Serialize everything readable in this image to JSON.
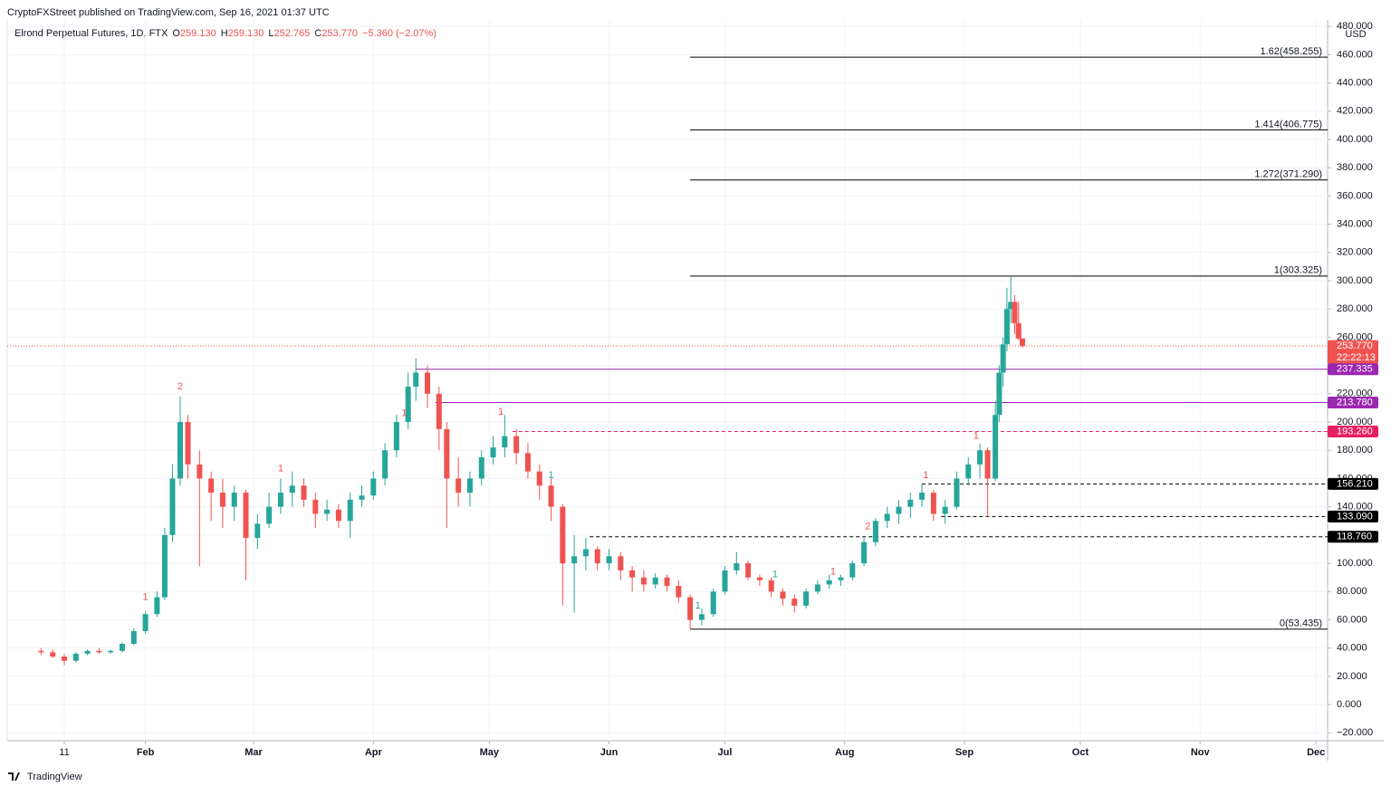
{
  "header": {
    "publisher": "CryptoFXStreet published on TradingView.com, Sep 16, 2021 01:37 UTC",
    "symbol": "Elrond Perpetual Futures, 1D, FTX",
    "o_label": "O",
    "o": "259.130",
    "h_label": "H",
    "h": "259.130",
    "l_label": "L",
    "l": "252.765",
    "c_label": "C",
    "c": "253.770",
    "change": "−5.360 (−2.07%)",
    "currency": "USD",
    "countdown": "22:22:13"
  },
  "footer": {
    "brand": "TradingView"
  },
  "chart_data": {
    "type": "candlestick",
    "up_color": "#26a69a",
    "down_color": "#ef5350",
    "grid": true,
    "x": [
      4,
      7,
      10,
      13,
      16,
      19,
      22,
      25,
      28,
      31,
      34,
      36,
      38,
      40,
      42,
      45,
      48,
      51,
      54,
      57,
      60,
      63,
      66,
      69,
      72,
      75,
      78,
      81,
      84,
      87,
      90,
      93,
      96,
      99,
      101,
      104,
      107,
      109,
      112,
      115,
      118,
      121,
      124,
      127,
      130,
      133,
      136,
      139,
      142,
      145,
      148,
      151,
      154,
      157,
      160,
      163,
      166,
      169,
      172,
      175,
      178,
      181,
      184,
      187,
      190,
      193,
      196,
      199,
      202,
      205,
      208,
      211,
      214,
      217,
      220,
      223,
      226,
      229,
      232,
      235,
      238,
      241,
      244,
      247,
      249,
      251,
      252,
      253,
      254,
      255,
      256,
      257,
      258
    ],
    "open": [
      38,
      37,
      34,
      31,
      36,
      38,
      37,
      38,
      43,
      52,
      64,
      76,
      120,
      160,
      200,
      170,
      160,
      150,
      140,
      150,
      118,
      128,
      140,
      150,
      155,
      145,
      135,
      138,
      130,
      145,
      148,
      160,
      180,
      200,
      225,
      235,
      220,
      195,
      160,
      150,
      160,
      175,
      182,
      190,
      178,
      165,
      155,
      140,
      100,
      105,
      110,
      100,
      105,
      95,
      90,
      85,
      90,
      84,
      76,
      60,
      64,
      80,
      95,
      100,
      90,
      88,
      80,
      75,
      70,
      80,
      85,
      88,
      90,
      100,
      115,
      130,
      135,
      140,
      145,
      150,
      135,
      140,
      160,
      170,
      180,
      160,
      205,
      235,
      255,
      280,
      285,
      270,
      259.13
    ],
    "high": [
      40,
      39,
      36,
      37,
      39,
      40,
      39,
      44,
      54,
      66,
      80,
      125,
      170,
      218,
      205,
      180,
      165,
      160,
      155,
      152,
      135,
      150,
      160,
      165,
      160,
      150,
      145,
      142,
      150,
      155,
      165,
      185,
      205,
      235,
      245,
      240,
      225,
      200,
      175,
      165,
      180,
      190,
      205,
      195,
      185,
      170,
      160,
      142,
      120,
      118,
      112,
      110,
      108,
      98,
      95,
      93,
      92,
      88,
      78,
      68,
      82,
      98,
      108,
      102,
      92,
      90,
      82,
      78,
      82,
      88,
      92,
      92,
      102,
      118,
      132,
      140,
      145,
      150,
      156,
      152,
      145,
      165,
      175,
      185,
      182,
      215,
      240,
      260,
      295,
      303.325,
      290,
      285,
      259.13
    ],
    "low": [
      35,
      33,
      28,
      30,
      35,
      36,
      36,
      37,
      42,
      50,
      62,
      74,
      115,
      155,
      160,
      98,
      130,
      125,
      130,
      88,
      110,
      125,
      135,
      140,
      140,
      125,
      130,
      125,
      118,
      140,
      145,
      155,
      175,
      195,
      215,
      210,
      180,
      125,
      140,
      140,
      155,
      170,
      175,
      170,
      160,
      145,
      130,
      70,
      65,
      95,
      95,
      95,
      88,
      80,
      80,
      82,
      80,
      72,
      53.435,
      56,
      62,
      78,
      92,
      88,
      84,
      76,
      70,
      65,
      68,
      78,
      82,
      84,
      88,
      98,
      112,
      125,
      128,
      132,
      140,
      130,
      128,
      138,
      155,
      160,
      133,
      158,
      200,
      225,
      250,
      270,
      262,
      258,
      252.765
    ],
    "close": [
      37,
      34,
      31,
      36,
      38,
      37,
      38,
      43,
      52,
      64,
      76,
      120,
      160,
      200,
      170,
      160,
      150,
      140,
      150,
      118,
      128,
      140,
      150,
      155,
      145,
      135,
      138,
      130,
      145,
      148,
      160,
      180,
      200,
      225,
      235,
      220,
      195,
      160,
      150,
      160,
      175,
      182,
      190,
      178,
      165,
      155,
      140,
      100,
      105,
      110,
      100,
      105,
      95,
      90,
      85,
      90,
      84,
      76,
      60,
      64,
      80,
      95,
      100,
      90,
      88,
      80,
      75,
      70,
      80,
      85,
      88,
      90,
      100,
      115,
      130,
      135,
      140,
      145,
      150,
      135,
      140,
      160,
      170,
      180,
      160,
      205,
      235,
      255,
      280,
      285,
      270,
      259.13,
      253.77
    ],
    "xlim": [
      -4.77,
      337
    ],
    "xticks": [
      {
        "value": 10,
        "label": "11"
      },
      {
        "value": 31,
        "label": "Feb"
      },
      {
        "value": 59,
        "label": "Mar"
      },
      {
        "value": 90,
        "label": "Apr"
      },
      {
        "value": 120,
        "label": "May"
      },
      {
        "value": 151,
        "label": "Jun"
      },
      {
        "value": 181,
        "label": "Jul"
      },
      {
        "value": 212,
        "label": "Aug"
      },
      {
        "value": 243,
        "label": "Sep"
      },
      {
        "value": 273,
        "label": "Oct"
      },
      {
        "value": 304,
        "label": "Nov"
      },
      {
        "value": 334,
        "label": "Dec"
      }
    ],
    "ylim": [
      -25.6,
      484.6
    ],
    "yticks": [
      {
        "value": -20,
        "label": "−20.000"
      },
      {
        "value": 0,
        "label": "0.000"
      },
      {
        "value": 20,
        "label": "20.000"
      },
      {
        "value": 40,
        "label": "40.000"
      },
      {
        "value": 60,
        "label": "60.000"
      },
      {
        "value": 80,
        "label": "80.000"
      },
      {
        "value": 100,
        "label": "100.000"
      },
      {
        "value": 120,
        "label": "120.000"
      },
      {
        "value": 140,
        "label": "140.000"
      },
      {
        "value": 160,
        "label": "160.000"
      },
      {
        "value": 180,
        "label": "180.000"
      },
      {
        "value": 200,
        "label": "200.000"
      },
      {
        "value": 220,
        "label": "220.000"
      },
      {
        "value": 240,
        "label": "240.000"
      },
      {
        "value": 260,
        "label": "260.000"
      },
      {
        "value": 280,
        "label": "280.000"
      },
      {
        "value": 300,
        "label": "300.000"
      },
      {
        "value": 320,
        "label": "320.000"
      },
      {
        "value": 340,
        "label": "340.000"
      },
      {
        "value": 360,
        "label": "360.000"
      },
      {
        "value": 380,
        "label": "380.000"
      },
      {
        "value": 400,
        "label": "400.000"
      },
      {
        "value": 420,
        "label": "420.000"
      },
      {
        "value": 440,
        "label": "440.000"
      },
      {
        "value": 460,
        "label": "460.000"
      },
      {
        "value": 480,
        "label": "480.000"
      }
    ],
    "fib_levels": [
      {
        "value": 458.255,
        "label": "1.62(458.255)"
      },
      {
        "value": 406.775,
        "label": "1.414(406.775)"
      },
      {
        "value": 371.29,
        "label": "1.272(371.290)"
      },
      {
        "value": 303.325,
        "label": "1(303.325)"
      },
      {
        "value": 53.435,
        "label": "0(53.435)"
      }
    ],
    "fib_start": 172,
    "levels": [
      {
        "value": 253.77,
        "label": "253.770",
        "color": "#ef5350",
        "dash": "1,2",
        "start": -4.77
      },
      {
        "value": 237.335,
        "label": "237.335",
        "color": "#9c27b0",
        "dash": "",
        "start": 101
      },
      {
        "value": 213.78,
        "label": "213.780",
        "color": "#9c27b0",
        "dash": "",
        "start": 106
      },
      {
        "value": 193.26,
        "label": "193.260",
        "color": "#e91e63",
        "dash": "4,3",
        "start": 126
      },
      {
        "value": 156.21,
        "label": "156.210",
        "color": "#000000",
        "dash": "4,3",
        "start": 232
      },
      {
        "value": 133.09,
        "label": "133.090",
        "color": "#000000",
        "dash": "4,3",
        "start": 237
      },
      {
        "value": 118.76,
        "label": "118.760",
        "color": "#000000",
        "dash": "4,3",
        "start": 146
      }
    ],
    "annotations": [
      {
        "x": 31,
        "y": 76,
        "text": "1",
        "color": "#ef5350"
      },
      {
        "x": 40,
        "y": 225,
        "text": "2",
        "color": "#ef5350"
      },
      {
        "x": 66,
        "y": 167,
        "text": "1",
        "color": "#ef5350"
      },
      {
        "x": 98,
        "y": 206,
        "text": "1",
        "color": "#ef5350"
      },
      {
        "x": 123,
        "y": 207,
        "text": "1",
        "color": "#ef5350"
      },
      {
        "x": 136,
        "y": 162,
        "text": "1",
        "color": "#26a69a"
      },
      {
        "x": 174,
        "y": 70,
        "text": "1",
        "color": "#26a69a"
      },
      {
        "x": 194,
        "y": 92,
        "text": "1",
        "color": "#26a69a"
      },
      {
        "x": 209,
        "y": 94,
        "text": "1",
        "color": "#ef5350"
      },
      {
        "x": 218,
        "y": 126,
        "text": "2",
        "color": "#ef5350"
      },
      {
        "x": 233,
        "y": 162,
        "text": "1",
        "color": "#ef5350"
      },
      {
        "x": 246,
        "y": 190,
        "text": "1",
        "color": "#ef5350"
      }
    ]
  }
}
